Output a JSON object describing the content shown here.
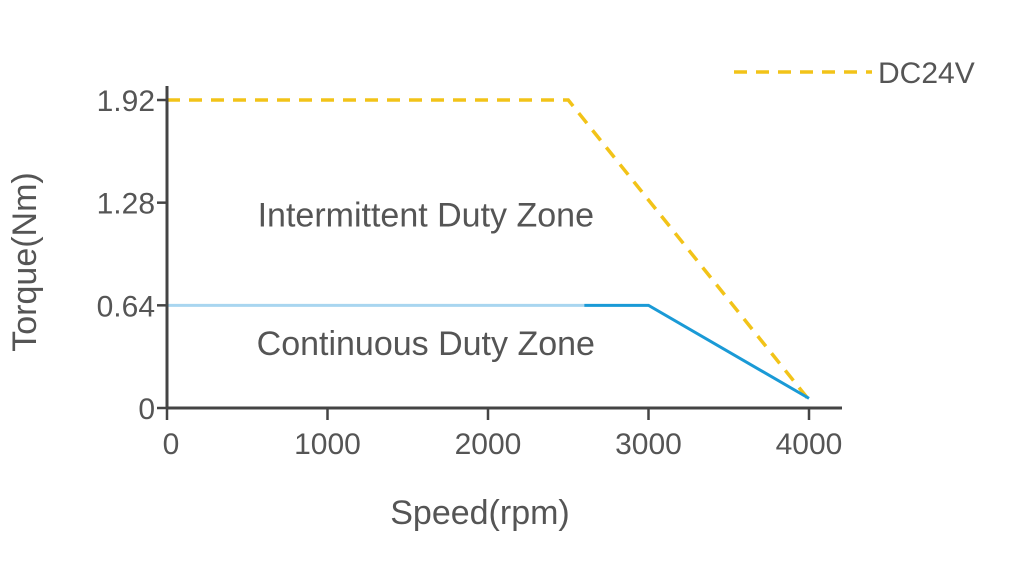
{
  "chart_data": {
    "type": "line",
    "title": "",
    "xlabel": "Speed(rpm)",
    "ylabel": "Torque(Nm)",
    "xlim": [
      0,
      4000
    ],
    "ylim": [
      0,
      1.92
    ],
    "x_ticks": [
      0,
      1000,
      2000,
      3000,
      4000
    ],
    "x_tick_labels": [
      "0",
      "1000",
      "2000",
      "3000",
      "4000"
    ],
    "y_ticks": [
      0,
      0.64,
      1.28,
      1.92
    ],
    "y_tick_labels": [
      "0",
      "0.64",
      "1.28",
      "1.92"
    ],
    "grid": false,
    "legend_position": "top-right",
    "series": [
      {
        "name": "DC24V",
        "style": "dashed",
        "color": "#f2c318",
        "x": [
          0,
          2500,
          4000
        ],
        "y": [
          1.92,
          1.92,
          0.05
        ]
      },
      {
        "style": "solid",
        "color": "#1a9ad6",
        "light_color": "#a9d6f0",
        "light_until_x": 2600,
        "x": [
          0,
          3000,
          4000
        ],
        "y": [
          0.64,
          0.64,
          0.06
        ]
      }
    ],
    "annotations": [
      {
        "text": "Intermittent Duty Zone",
        "x": 1600,
        "y": 1.13
      },
      {
        "text": "Continuous Duty Zone",
        "x": 1600,
        "y": 0.33
      }
    ]
  }
}
